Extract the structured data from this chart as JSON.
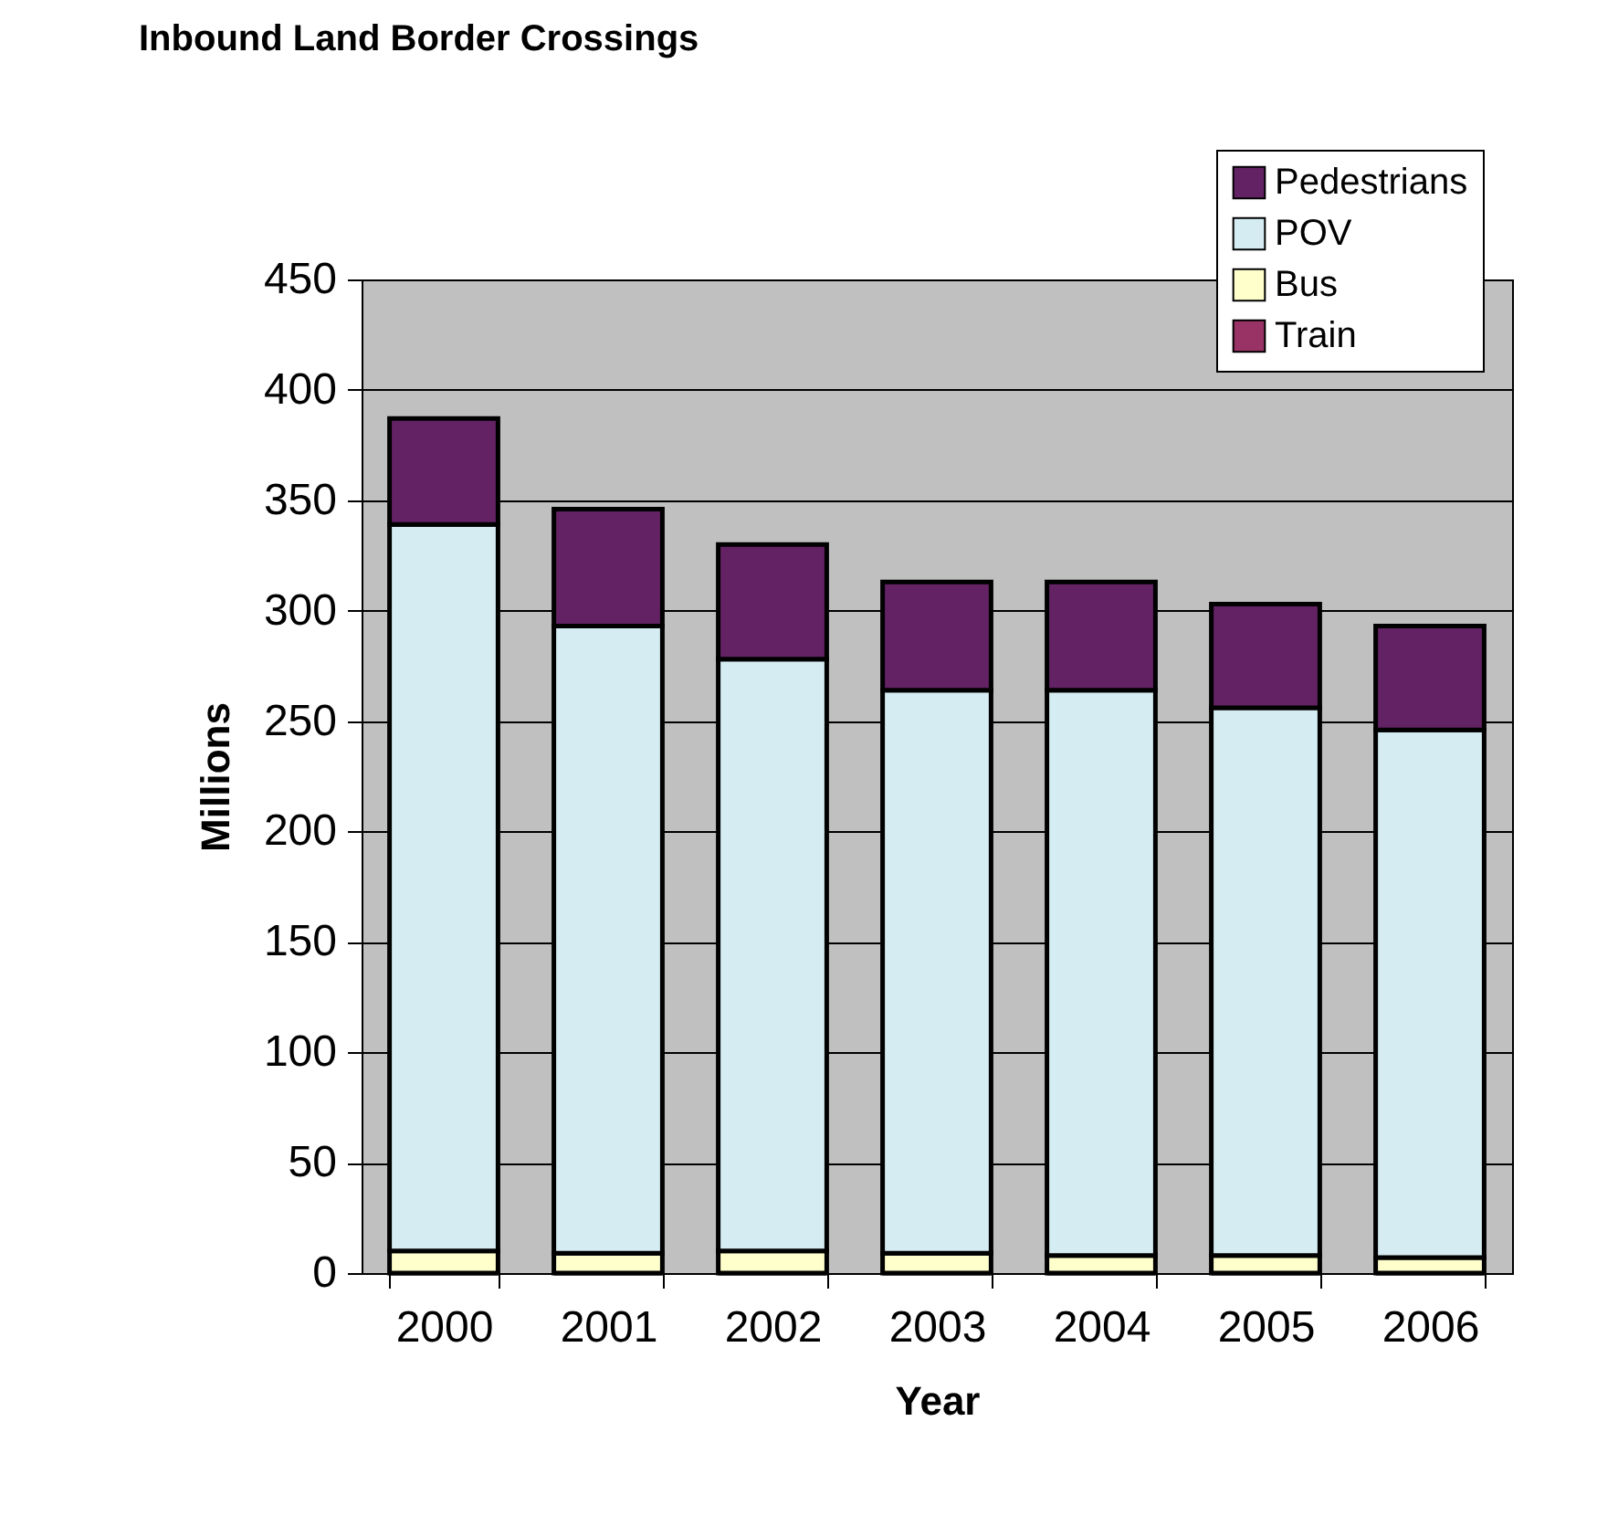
{
  "chart_data": {
    "type": "bar",
    "title": "Inbound Land Border Crossings",
    "xlabel": "Year",
    "ylabel": "Millions",
    "categories": [
      "2000",
      "2001",
      "2002",
      "2003",
      "2004",
      "2005",
      "2006"
    ],
    "stacked": true,
    "series": [
      {
        "name": "Train",
        "color": "#993366",
        "values": [
          0,
          0,
          0,
          0,
          0,
          0,
          0
        ]
      },
      {
        "name": "Bus",
        "color": "#ffffcc",
        "values": [
          10,
          9,
          10,
          9,
          8,
          8,
          7
        ]
      },
      {
        "name": "POV",
        "color": "#d4ecf2",
        "values": [
          329,
          284,
          268,
          255,
          256,
          248,
          239
        ]
      },
      {
        "name": "Pedestrians",
        "color": "#632264",
        "values": [
          48,
          53,
          52,
          49,
          49,
          47,
          47
        ]
      }
    ],
    "ylim": [
      0,
      450
    ],
    "yticks": [
      0,
      50,
      100,
      150,
      200,
      250,
      300,
      350,
      400,
      450
    ],
    "grid": "y",
    "legend": "top right"
  }
}
